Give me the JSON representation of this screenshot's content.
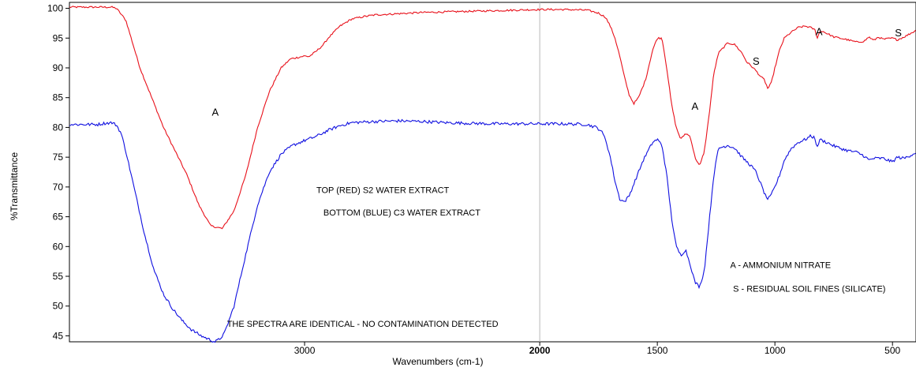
{
  "chart_data": {
    "type": "line",
    "xlabel": "Wavenumbers (cm-1)",
    "ylabel": "%Transmittance",
    "xlim": [
      4000,
      400
    ],
    "ylim": [
      44,
      101
    ],
    "x_axis_reversed": true,
    "grid": false,
    "x_ticks": [
      {
        "value": 3000,
        "label": "3000",
        "bold": false
      },
      {
        "value": 2000,
        "label": "2000",
        "bold": true
      },
      {
        "value": 1500,
        "label": "1500",
        "bold": false
      },
      {
        "value": 1000,
        "label": "1000",
        "bold": false
      },
      {
        "value": 500,
        "label": "500",
        "bold": false
      }
    ],
    "y_ticks": [
      45,
      50,
      55,
      60,
      65,
      70,
      75,
      80,
      85,
      90,
      95,
      100
    ],
    "reference_line_x": 2000,
    "series": [
      {
        "color": "#e8101a",
        "noise": 0.15,
        "x": [
          4000,
          3820,
          3800,
          3760,
          3700,
          3600,
          3500,
          3450,
          3400,
          3350,
          3300,
          3250,
          3200,
          3150,
          3100,
          3060,
          3000,
          2980,
          2950,
          2920,
          2900,
          2850,
          2800,
          2750,
          2700,
          2600,
          2500,
          2400,
          2300,
          2200,
          2100,
          2000,
          1900,
          1800,
          1750,
          1720,
          1700,
          1680,
          1660,
          1640,
          1620,
          1600,
          1580,
          1550,
          1520,
          1500,
          1480,
          1460,
          1440,
          1420,
          1400,
          1380,
          1360,
          1340,
          1320,
          1300,
          1280,
          1260,
          1240,
          1200,
          1170,
          1140,
          1120,
          1100,
          1080,
          1060,
          1045,
          1030,
          1015,
          1000,
          980,
          960,
          930,
          900,
          870,
          850,
          830,
          820,
          810,
          800,
          780,
          750,
          700,
          650,
          620,
          600,
          580,
          560,
          540,
          500,
          480,
          450,
          400
        ],
        "y": [
          100.2,
          100.2,
          100,
          98,
          90,
          80,
          72,
          67,
          63.5,
          63,
          66,
          72,
          80,
          86,
          90,
          91.5,
          92,
          91.9,
          92.8,
          93.9,
          95,
          97,
          98.2,
          98.6,
          98.9,
          99.1,
          99.3,
          99.4,
          99.5,
          99.6,
          99.7,
          99.8,
          99.8,
          99.7,
          99.2,
          98.5,
          97,
          95,
          92,
          88.5,
          85.5,
          84,
          85,
          88,
          93,
          95,
          95,
          90,
          84,
          80,
          78,
          79,
          78.5,
          75,
          73.5,
          76,
          82,
          89,
          92.5,
          94.2,
          93.9,
          92.5,
          91,
          90.3,
          89.5,
          88.5,
          88,
          86.5,
          87.5,
          90,
          93,
          95,
          96,
          96.8,
          97,
          96.8,
          96.4,
          95,
          96,
          96.2,
          95.8,
          95.2,
          94.8,
          94.3,
          94.5,
          95.2,
          94.6,
          95.2,
          94.8,
          95,
          94.7,
          95.2,
          96.3
        ]
      },
      {
        "color": "#1010e0",
        "noise": 0.25,
        "x": [
          4000,
          3880,
          3850,
          3820,
          3800,
          3780,
          3760,
          3720,
          3680,
          3640,
          3600,
          3560,
          3520,
          3480,
          3440,
          3400,
          3380,
          3360,
          3340,
          3300,
          3260,
          3200,
          3150,
          3100,
          3050,
          3000,
          2950,
          2900,
          2850,
          2800,
          2700,
          2600,
          2500,
          2400,
          2300,
          2200,
          2100,
          2000,
          1900,
          1800,
          1760,
          1740,
          1720,
          1700,
          1680,
          1660,
          1640,
          1620,
          1600,
          1580,
          1560,
          1540,
          1520,
          1500,
          1480,
          1460,
          1440,
          1420,
          1400,
          1380,
          1360,
          1340,
          1320,
          1300,
          1280,
          1260,
          1240,
          1200,
          1170,
          1140,
          1100,
          1080,
          1060,
          1040,
          1030,
          1020,
          1000,
          980,
          960,
          930,
          900,
          870,
          850,
          830,
          820,
          810,
          800,
          780,
          750,
          700,
          650,
          620,
          600,
          580,
          540,
          500,
          480,
          450,
          400
        ],
        "y": [
          80.5,
          80.5,
          80.7,
          80.8,
          80.4,
          79,
          76,
          69,
          62,
          56,
          52,
          49.5,
          47.5,
          46,
          45,
          44.3,
          44,
          44.5,
          45.5,
          50,
          57,
          67,
          72.5,
          75.5,
          77,
          77.8,
          78.5,
          79.5,
          80.3,
          80.8,
          81,
          81.1,
          81,
          80.8,
          80.7,
          80.6,
          80.6,
          80.6,
          80.6,
          80.5,
          80,
          79.5,
          78,
          75,
          71,
          68,
          67.5,
          68.5,
          70.5,
          72.5,
          74.5,
          76,
          77.5,
          78,
          77,
          72,
          65,
          60,
          58.5,
          59.5,
          57,
          54,
          53.2,
          56,
          64,
          72,
          76.5,
          77,
          76.5,
          75,
          73.5,
          72.5,
          70.5,
          68.5,
          68,
          68.3,
          70,
          72,
          74.5,
          76.5,
          77.5,
          78,
          78.5,
          78.3,
          76.5,
          78,
          77.8,
          77.5,
          76.9,
          76.2,
          75.8,
          75.2,
          74.5,
          74.8,
          74.8,
          74.2,
          75,
          74.8,
          75.8
        ]
      }
    ],
    "annotations": [
      {
        "text": "A",
        "x": 3380,
        "y": 82,
        "kind": "letter"
      },
      {
        "text": "A",
        "x": 1340,
        "y": 83,
        "kind": "letter"
      },
      {
        "text": "S",
        "x": 1080,
        "y": 90.5,
        "kind": "letter"
      },
      {
        "text": "A",
        "x": 812,
        "y": 95.5,
        "kind": "letter"
      },
      {
        "text": "S",
        "x": 475,
        "y": 95.3,
        "kind": "letter"
      },
      {
        "text": "TOP (RED) S2 WATER EXTRACT",
        "x": 2950,
        "y": 69,
        "kind": "note"
      },
      {
        "text": "BOTTOM (BLUE) C3 WATER EXTRACT",
        "x": 2920,
        "y": 65.2,
        "kind": "note"
      },
      {
        "text": "A - AMMONIUM NITRATE",
        "x": 1190,
        "y": 56.4,
        "kind": "note"
      },
      {
        "text": "S - RESIDUAL SOIL FINES (SILICATE)",
        "x": 1178,
        "y": 52.4,
        "kind": "note"
      },
      {
        "text": "THE SPECTRA ARE IDENTICAL - NO CONTAMINATION DETECTED",
        "x": 3330,
        "y": 46.5,
        "kind": "note"
      }
    ]
  }
}
